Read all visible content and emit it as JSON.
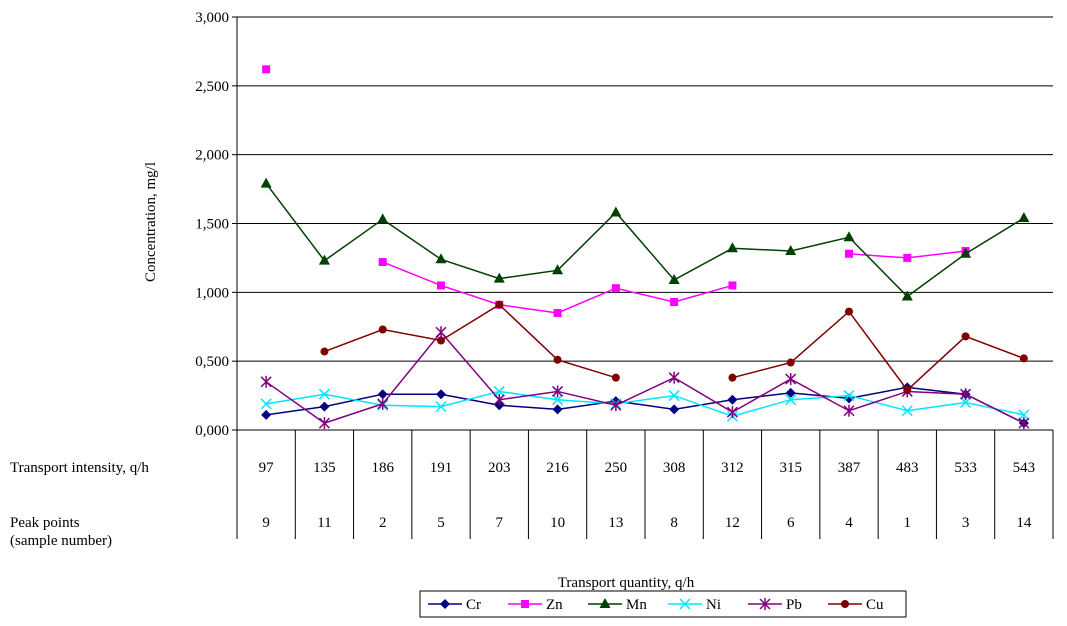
{
  "chart_data": {
    "type": "line",
    "title": "",
    "ylabel": "Concentration, mg/l",
    "xlabel": "Transport quantity, q/h",
    "ylim": [
      0,
      3
    ],
    "y_ticks": [
      "0,000",
      "0,500",
      "1,000",
      "1,500",
      "2,000",
      "2,500",
      "3,000"
    ],
    "grid": "horizontal",
    "legend_position": "bottom",
    "table_rows": [
      {
        "label": "Transport intensity, q/h",
        "values": [
          "97",
          "135",
          "186",
          "191",
          "203",
          "216",
          "250",
          "308",
          "312",
          "315",
          "387",
          "483",
          "533",
          "543"
        ]
      },
      {
        "label": "Peak points\n(sample number)",
        "values": [
          "9",
          "11",
          "2",
          "5",
          "7",
          "10",
          "13",
          "8",
          "12",
          "6",
          "4",
          "1",
          "3",
          "14"
        ]
      }
    ],
    "categories": [
      "97",
      "135",
      "186",
      "191",
      "203",
      "216",
      "250",
      "308",
      "312",
      "315",
      "387",
      "483",
      "533",
      "543"
    ],
    "series": [
      {
        "name": "Cr",
        "color": "#000080",
        "marker": "diamond",
        "values": [
          0.11,
          0.17,
          0.26,
          0.26,
          0.18,
          0.15,
          0.21,
          0.15,
          0.22,
          0.27,
          0.23,
          0.31,
          0.26,
          0.05
        ]
      },
      {
        "name": "Zn",
        "color": "#ff00ff",
        "marker": "square",
        "values": [
          2.62,
          null,
          1.22,
          1.05,
          0.91,
          0.85,
          1.03,
          0.93,
          1.05,
          null,
          1.28,
          1.25,
          1.3,
          null
        ]
      },
      {
        "name": "Mn",
        "color": "#004000",
        "marker": "triangle",
        "values": [
          1.79,
          1.23,
          1.53,
          1.24,
          1.1,
          1.16,
          1.58,
          1.09,
          1.32,
          1.3,
          1.4,
          0.97,
          1.28,
          1.54
        ]
      },
      {
        "name": "Ni",
        "color": "#00e5ff",
        "marker": "x",
        "values": [
          0.19,
          0.26,
          0.18,
          0.17,
          0.28,
          0.22,
          0.19,
          0.25,
          0.1,
          0.22,
          0.25,
          0.14,
          0.2,
          0.11
        ]
      },
      {
        "name": "Pb",
        "color": "#800080",
        "marker": "star",
        "values": [
          0.35,
          0.05,
          0.19,
          0.71,
          0.22,
          0.28,
          0.18,
          0.38,
          0.13,
          0.37,
          0.14,
          0.28,
          0.26,
          0.05
        ]
      },
      {
        "name": "Cu",
        "color": "#800000",
        "marker": "circle",
        "values": [
          null,
          0.57,
          0.73,
          0.65,
          0.91,
          0.51,
          0.38,
          null,
          0.38,
          0.49,
          0.86,
          0.29,
          0.68,
          0.52
        ]
      }
    ]
  }
}
